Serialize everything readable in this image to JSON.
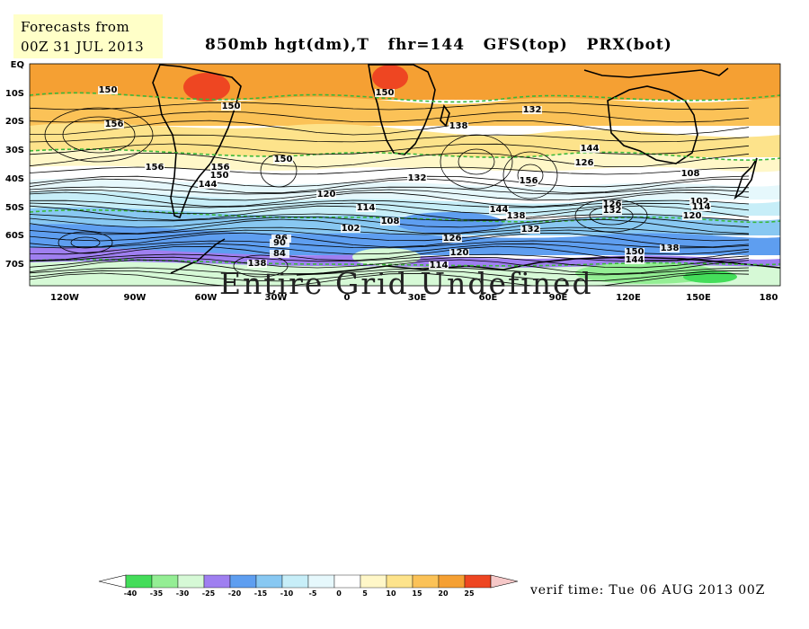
{
  "header": {
    "init_line1": "Forecasts from",
    "init_line2": "00Z 31 JUL 2013",
    "title": "850mb hgt(dm),T   fhr=144   GFS(top)   PRX(bot)"
  },
  "map": {
    "overlay_message": "Entire Grid Undefined",
    "lat_labels": [
      "EQ",
      "10S",
      "20S",
      "30S",
      "40S",
      "50S",
      "60S",
      "70S"
    ],
    "lon_labels": [
      "120W",
      "90W",
      "60W",
      "30W",
      "0",
      "30E",
      "60E",
      "90E",
      "120E",
      "150E",
      "180"
    ],
    "contour_labels": [
      "150",
      "156",
      "150",
      "156",
      "150",
      "156",
      "150",
      "144",
      "150",
      "138",
      "132",
      "144",
      "126",
      "120",
      "114",
      "108",
      "102",
      "96",
      "90",
      "84",
      "138",
      "132",
      "156",
      "144",
      "138",
      "132",
      "126",
      "120",
      "114",
      "108",
      "102",
      "114",
      "120",
      "126",
      "132",
      "138",
      "144",
      "150"
    ],
    "colors": {
      "warm_25": "#ee4622",
      "warm_20": "#f5a033",
      "warm_15": "#fbc257",
      "warm_10": "#fde38b",
      "warm_5": "#fff7c8",
      "cold_m5": "#e6f8fc",
      "cold_m10": "#c7eef8",
      "cold_m15": "#88c8f2",
      "cold_m20": "#5e9ef0",
      "cold_m25": "#9f7ff0",
      "cold_m30": "#d6f9d6",
      "cold_m35": "#94ee94",
      "cold_m40": "#44dd5a",
      "contour": "#000000",
      "zero_line": "#3ab83a"
    }
  },
  "colorbar": {
    "labels": [
      "-40",
      "-35",
      "-30",
      "-25",
      "-20",
      "-15",
      "-10",
      "-5",
      "0",
      "5",
      "10",
      "15",
      "20",
      "25"
    ],
    "colors": [
      "#44dd5a",
      "#94ee94",
      "#d6f9d6",
      "#9f7ff0",
      "#5e9ef0",
      "#88c8f2",
      "#c7eef8",
      "#e6f8fc",
      "#ffffff",
      "#fff7c8",
      "#fde38b",
      "#fbc257",
      "#f5a033",
      "#ee4622"
    ]
  },
  "footer": {
    "verif_time": "verif time: Tue 06 AUG 2013 00Z"
  }
}
